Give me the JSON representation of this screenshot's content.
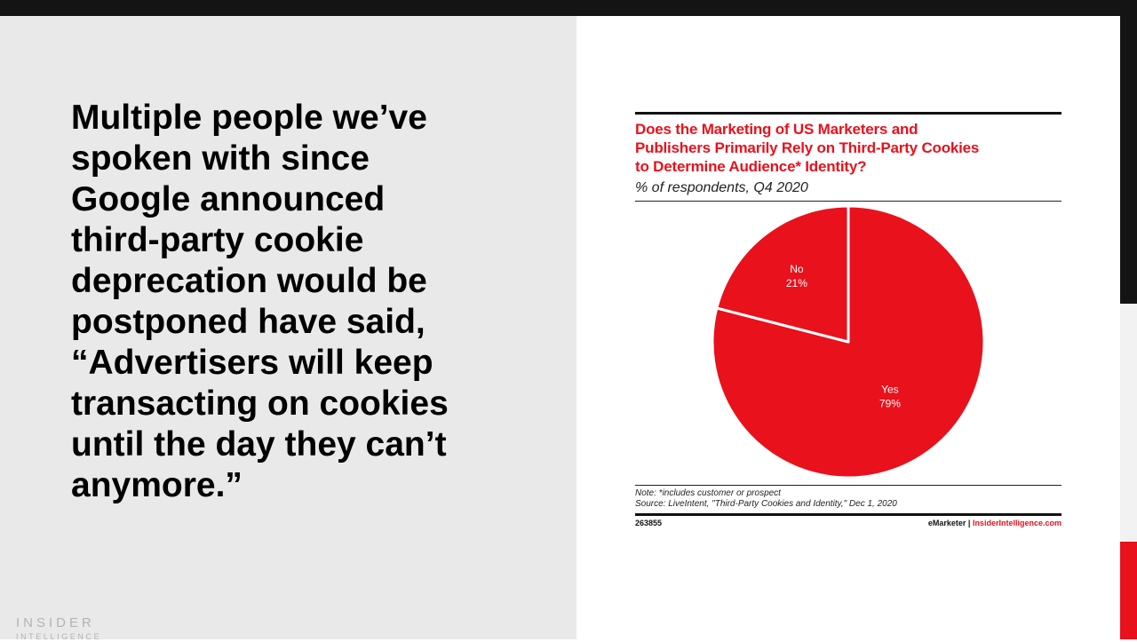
{
  "slide": {
    "quote_lines": [
      "Multiple people we’ve",
      "spoken with since",
      "Google announced",
      "third-party cookie",
      "deprecation would be",
      "postponed have said,",
      "“Advertisers will keep",
      "transacting on cookies",
      "until the day they can’t",
      "anymore.”"
    ],
    "logo": {
      "line1": "INSIDER",
      "line2": "INTELLIGENCE"
    }
  },
  "chart_data": {
    "type": "pie",
    "title_lines": [
      "Does the Marketing of US Marketers and",
      "Publishers Primarily Rely on Third-Party Cookies",
      "to Determine Audience* Identity?"
    ],
    "subtitle": "% of respondents, Q4 2020",
    "slices": [
      {
        "label": "No",
        "value": 21,
        "value_label": "21%"
      },
      {
        "label": "Yes",
        "value": 79,
        "value_label": "79%"
      }
    ],
    "note": "Note: *includes customer or prospect",
    "source": "Source: LiveIntent, \"Third-Party Cookies and Identity,\" Dec 1, 2020",
    "chart_id": "263855",
    "brand_left": "eMarketer",
    "brand_sep": "|",
    "brand_right": "InsiderIntelligence.com",
    "colors": {
      "slice": "#e8111c",
      "divider": "#ffffff",
      "title": "#e8111c"
    }
  }
}
